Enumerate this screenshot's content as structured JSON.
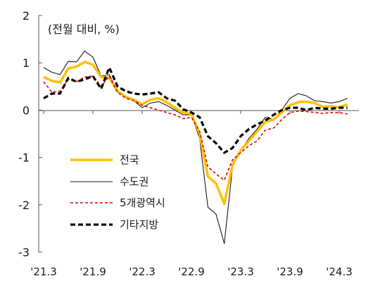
{
  "chart_data": {
    "type": "line",
    "unit_label": "(전월 대비, %)",
    "x": [
      "'21.3",
      "'21.4",
      "'21.5",
      "'21.6",
      "'21.7",
      "'21.8",
      "'21.9",
      "'21.10",
      "'21.11",
      "'21.12",
      "'22.1",
      "'22.2",
      "'22.3",
      "'22.4",
      "'22.5",
      "'22.6",
      "'22.7",
      "'22.8",
      "'22.9",
      "'22.10",
      "'22.11",
      "'22.12",
      "'23.1",
      "'23.2",
      "'23.3",
      "'23.4",
      "'23.5",
      "'23.6",
      "'23.7",
      "'23.8",
      "'23.9",
      "'23.10",
      "'23.11",
      "'23.12",
      "'24.1",
      "'24.2",
      "'24.3",
      "'24.4"
    ],
    "x_ticks": [
      "'21.3",
      "'21.9",
      "'22.3",
      "'22.9",
      "'23.3",
      "'23.9",
      "'24.3"
    ],
    "y_ticks": [
      "2",
      "1",
      "0",
      "-1",
      "-2",
      "-3"
    ],
    "ylim": [
      -3,
      2
    ],
    "grid": false,
    "legend_position": "lower-left",
    "series": [
      {
        "name": "전국",
        "color": "#FFC000",
        "line_style": "solid-thick",
        "values": [
          0.7,
          0.62,
          0.58,
          0.88,
          0.92,
          1.02,
          0.96,
          0.7,
          0.68,
          0.4,
          0.28,
          0.22,
          0.12,
          0.22,
          0.25,
          0.17,
          0.05,
          -0.05,
          -0.08,
          -0.5,
          -1.4,
          -1.55,
          -1.98,
          -1.15,
          -0.85,
          -0.65,
          -0.45,
          -0.25,
          -0.2,
          -0.05,
          0.1,
          0.17,
          0.18,
          0.15,
          0.07,
          0.08,
          0.06,
          0.12
        ]
      },
      {
        "name": "수도권",
        "color": "#1a1a1a",
        "line_style": "solid-thin",
        "values": [
          0.9,
          0.8,
          0.75,
          1.03,
          1.02,
          1.25,
          1.12,
          0.72,
          0.75,
          0.4,
          0.3,
          0.2,
          0.05,
          0.15,
          0.18,
          0.1,
          0.0,
          -0.1,
          -0.1,
          -0.6,
          -2.05,
          -2.2,
          -2.82,
          -1.2,
          -0.85,
          -0.6,
          -0.4,
          -0.15,
          -0.2,
          0.0,
          0.25,
          0.35,
          0.3,
          0.2,
          0.18,
          0.15,
          0.18,
          0.25
        ]
      },
      {
        "name": "5개광역시",
        "color": "#E00000",
        "line_style": "dashed",
        "values": [
          0.6,
          0.38,
          0.4,
          0.65,
          0.6,
          0.7,
          0.72,
          0.5,
          0.72,
          0.38,
          0.25,
          0.2,
          0.1,
          0.05,
          0.0,
          -0.05,
          -0.1,
          -0.18,
          -0.15,
          -0.45,
          -1.2,
          -1.35,
          -1.48,
          -1.05,
          -0.9,
          -0.75,
          -0.65,
          -0.42,
          -0.38,
          -0.2,
          -0.05,
          -0.02,
          -0.03,
          -0.05,
          -0.07,
          -0.05,
          -0.05,
          -0.08
        ]
      },
      {
        "name": "기타지방",
        "color": "#000000",
        "line_style": "dashed-thick",
        "values": [
          0.25,
          0.35,
          0.35,
          0.68,
          0.6,
          0.65,
          0.72,
          0.45,
          0.9,
          0.5,
          0.4,
          0.35,
          0.33,
          0.35,
          0.38,
          0.25,
          0.2,
          0.02,
          -0.05,
          -0.15,
          -0.55,
          -0.7,
          -0.9,
          -0.8,
          -0.55,
          -0.4,
          -0.3,
          -0.22,
          -0.1,
          0.0,
          0.05,
          0.05,
          0.0,
          0.05,
          0.03,
          0.03,
          0.05,
          0.05
        ]
      }
    ]
  }
}
